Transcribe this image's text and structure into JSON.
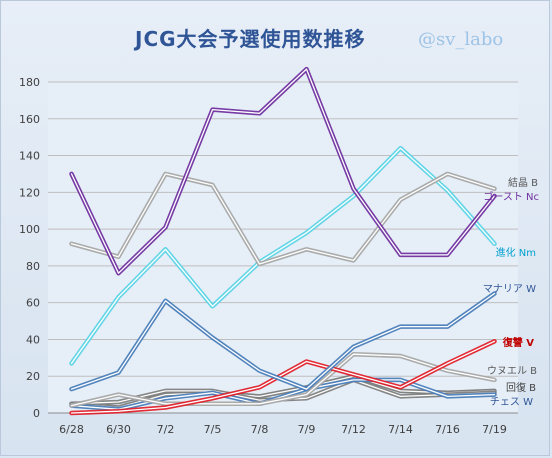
{
  "chart_data": {
    "type": "line",
    "title": "JCG大会予選使用数推移",
    "handle": "@sv_labo",
    "categories": [
      "6/28",
      "6/30",
      "7/2",
      "7/5",
      "7/8",
      "7/9",
      "7/12",
      "7/14",
      "7/16",
      "7/19"
    ],
    "ylim": [
      0,
      180
    ],
    "yticks": [
      0,
      20,
      40,
      60,
      80,
      100,
      120,
      140,
      160,
      180
    ],
    "grid": true,
    "series": [
      {
        "name": "結晶B",
        "color": "#a6a6a6",
        "values": [
          92,
          85,
          130,
          124,
          81,
          89,
          83,
          116,
          130,
          122
        ],
        "label_color": "#595959"
      },
      {
        "name": "ゴーストNc",
        "color": "#7030a0",
        "values": [
          130,
          76,
          101,
          165,
          163,
          187,
          122,
          86,
          86,
          118
        ],
        "label_color": "#7030a0"
      },
      {
        "name": "進化Nm",
        "color": "#5bd3e6",
        "values": [
          27,
          63,
          89,
          58,
          82,
          98,
          118,
          144,
          121,
          92
        ],
        "label_color": "#00a0d0"
      },
      {
        "name": "マナリアW",
        "color": "#4a7ebb",
        "values": [
          13,
          22,
          61,
          41,
          23,
          13,
          36,
          47,
          47,
          65
        ],
        "label_color": "#2f5597"
      },
      {
        "name": "復讐V",
        "color": "#e0202a",
        "values": [
          0,
          1,
          3,
          8,
          14,
          28,
          21,
          14,
          27,
          39
        ],
        "label_color": "#c00000"
      },
      {
        "name": "ウヌエルB",
        "color": "#a6a6a6",
        "values": [
          4,
          10,
          5,
          5,
          5,
          10,
          32,
          31,
          23,
          18
        ],
        "label_color": "#595959"
      },
      {
        "name": "回復B",
        "color": "#808080",
        "values": [
          5,
          6,
          12,
          12,
          7,
          8,
          18,
          9,
          10,
          11
        ],
        "label_color": "#404040"
      },
      {
        "name": "チェスW",
        "color": "#4a7ebb",
        "values": [
          4,
          2,
          8,
          11,
          5,
          13,
          18,
          18,
          9,
          10
        ],
        "label_color": "#2f5597"
      },
      {
        "name": "",
        "color": "#7a7a7a",
        "values": [
          5,
          3,
          10,
          11,
          9,
          14,
          20,
          12,
          11,
          12
        ],
        "label_color": ""
      }
    ],
    "labels": [
      {
        "text": "結晶 B",
        "series": 0
      },
      {
        "text": "ゴースト Nc",
        "series": 1
      },
      {
        "text": "進化 Nm",
        "series": 2
      },
      {
        "text": "マナリア W",
        "series": 3
      },
      {
        "text": "復讐 V",
        "series": 4
      },
      {
        "text": "ウヌエル B",
        "series": 5
      },
      {
        "text": "回復 B",
        "series": 6
      },
      {
        "text": "チェス W",
        "series": 7
      }
    ]
  }
}
